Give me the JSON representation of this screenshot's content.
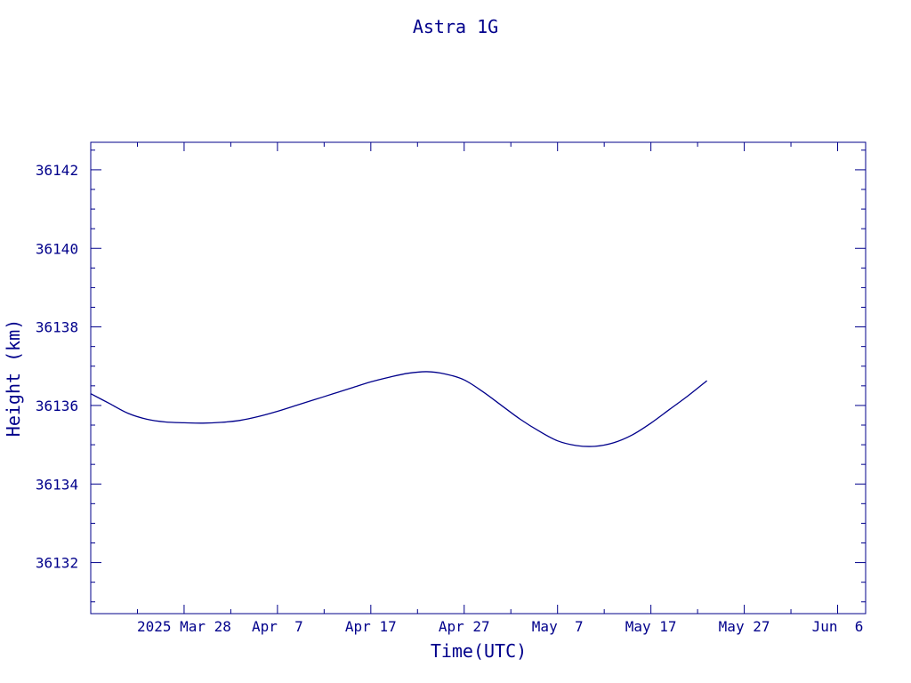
{
  "chart_data": {
    "type": "line",
    "title": "Astra 1G",
    "xlabel": "Time(UTC)",
    "ylabel": "Height (km)",
    "color": "#00008b",
    "xlim": [
      "2025-03-18",
      "2025-06-09"
    ],
    "ylim": [
      36130.7,
      36142.7
    ],
    "x_ticks": [
      {
        "date": "2025-03-28",
        "label": "2025 Mar 28"
      },
      {
        "date": "2025-04-07",
        "label": "Apr  7"
      },
      {
        "date": "2025-04-17",
        "label": "Apr 17"
      },
      {
        "date": "2025-04-27",
        "label": "Apr 27"
      },
      {
        "date": "2025-05-07",
        "label": "May  7"
      },
      {
        "date": "2025-05-17",
        "label": "May 17"
      },
      {
        "date": "2025-05-27",
        "label": "May 27"
      },
      {
        "date": "2025-06-06",
        "label": "Jun  6"
      }
    ],
    "x_minor_ticks": [
      "2025-03-23",
      "2025-04-02",
      "2025-04-12",
      "2025-04-22",
      "2025-05-02",
      "2025-05-12",
      "2025-05-22",
      "2025-06-01"
    ],
    "y_ticks": [
      {
        "value": 36132,
        "label": "36132"
      },
      {
        "value": 36134,
        "label": "36134"
      },
      {
        "value": 36136,
        "label": "36136"
      },
      {
        "value": 36138,
        "label": "36138"
      },
      {
        "value": 36140,
        "label": "36140"
      },
      {
        "value": 36142,
        "label": "36142"
      }
    ],
    "y_minor_step": 0.5,
    "grid": false,
    "series": [
      {
        "points": [
          [
            "2025-03-18",
            36136.3
          ],
          [
            "2025-03-20",
            36136.05
          ],
          [
            "2025-03-22",
            36135.8
          ],
          [
            "2025-03-24",
            36135.65
          ],
          [
            "2025-03-26",
            36135.58
          ],
          [
            "2025-03-28",
            36135.56
          ],
          [
            "2025-03-30",
            36135.55
          ],
          [
            "2025-04-01",
            36135.57
          ],
          [
            "2025-04-03",
            36135.62
          ],
          [
            "2025-04-05",
            36135.72
          ],
          [
            "2025-04-07",
            36135.85
          ],
          [
            "2025-04-09",
            36136.0
          ],
          [
            "2025-04-11",
            36136.15
          ],
          [
            "2025-04-13",
            36136.3
          ],
          [
            "2025-04-15",
            36136.45
          ],
          [
            "2025-04-17",
            36136.6
          ],
          [
            "2025-04-19",
            36136.72
          ],
          [
            "2025-04-21",
            36136.82
          ],
          [
            "2025-04-23",
            36136.86
          ],
          [
            "2025-04-25",
            36136.8
          ],
          [
            "2025-04-27",
            36136.65
          ],
          [
            "2025-04-29",
            36136.35
          ],
          [
            "2025-05-01",
            36136.0
          ],
          [
            "2025-05-03",
            36135.65
          ],
          [
            "2025-05-05",
            36135.35
          ],
          [
            "2025-05-07",
            36135.1
          ],
          [
            "2025-05-09",
            36134.98
          ],
          [
            "2025-05-11",
            36134.96
          ],
          [
            "2025-05-13",
            36135.05
          ],
          [
            "2025-05-15",
            36135.25
          ],
          [
            "2025-05-17",
            36135.55
          ],
          [
            "2025-05-19",
            36135.9
          ],
          [
            "2025-05-21",
            36136.25
          ],
          [
            "2025-05-23",
            36136.63
          ]
        ]
      }
    ]
  }
}
